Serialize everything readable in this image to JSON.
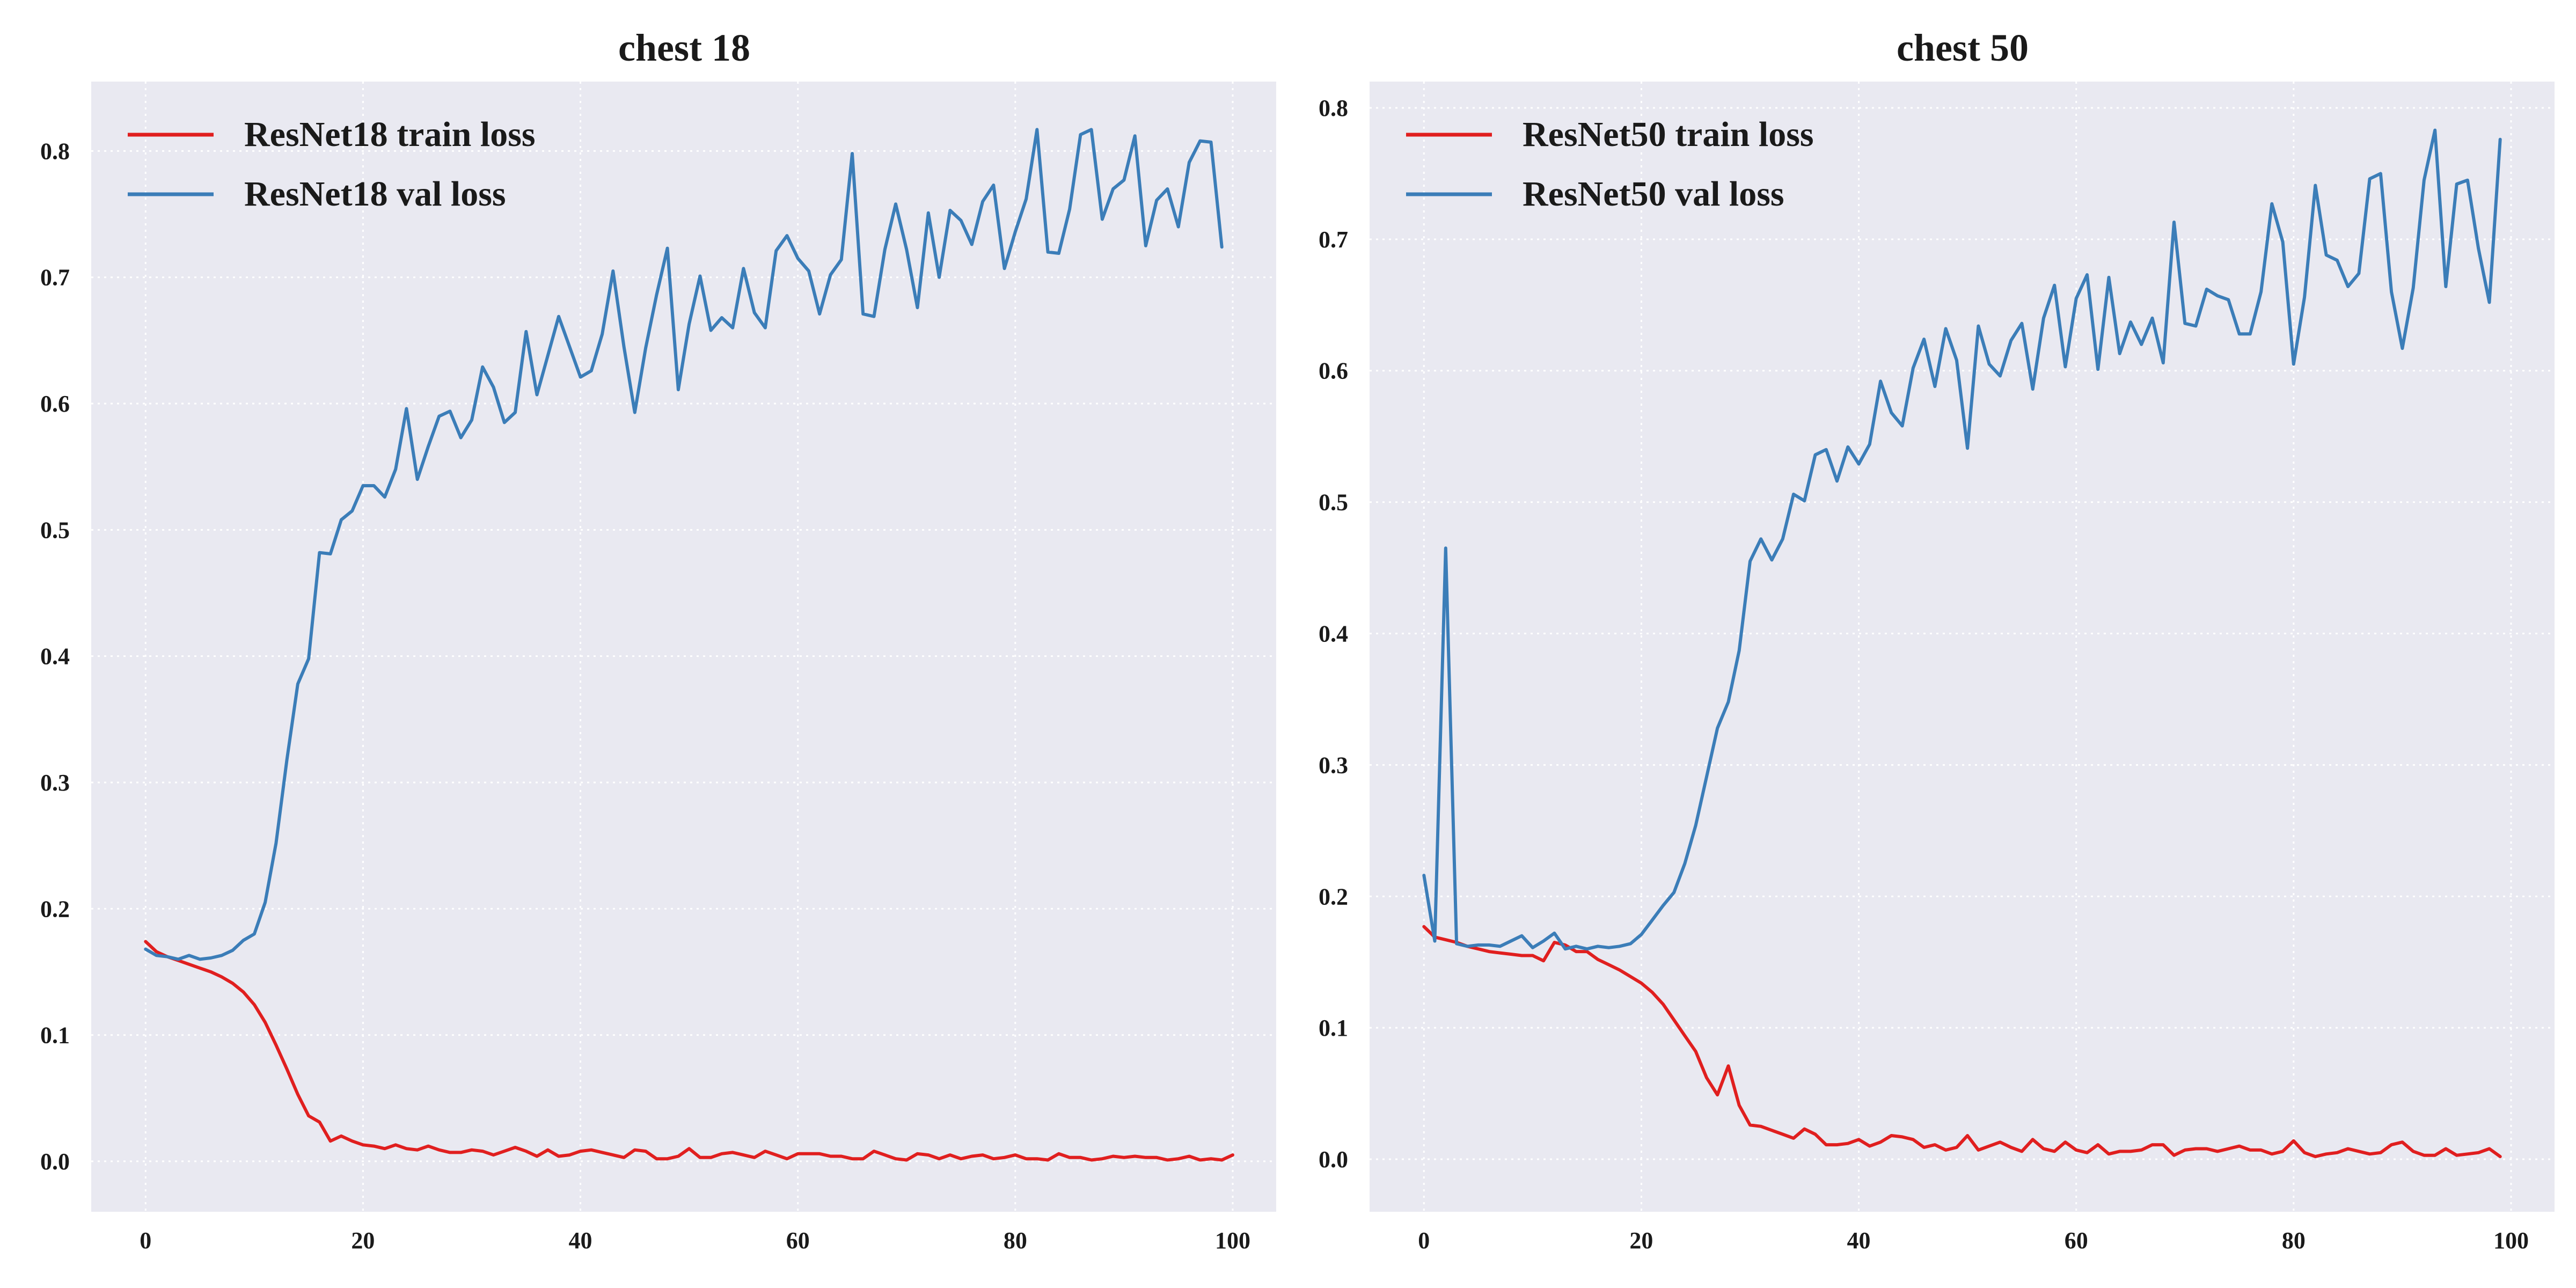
{
  "colors": {
    "panel_bg": "#e9e9f1",
    "grid": "#ffffff",
    "train": "#e01f1f",
    "val": "#3b7db8"
  },
  "chart_data": [
    {
      "type": "line",
      "title": "chest 18",
      "xlabel": "",
      "ylabel": "",
      "xlim": [
        -5,
        104
      ],
      "ylim": [
        -0.04,
        0.855
      ],
      "xticks": [
        0,
        20,
        40,
        60,
        80,
        100
      ],
      "yticks": [
        0.0,
        0.1,
        0.2,
        0.3,
        0.4,
        0.5,
        0.6,
        0.7,
        0.8
      ],
      "xtick_labels": [
        "0",
        "20",
        "40",
        "60",
        "80",
        "100"
      ],
      "ytick_labels": [
        "0.0",
        "0.1",
        "0.2",
        "0.3",
        "0.4",
        "0.5",
        "0.6",
        "0.7",
        "0.8"
      ],
      "grid": true,
      "legend": "upper-left",
      "series": [
        {
          "name": "ResNet18 train loss",
          "color": "#e01f1f",
          "values": [
            0.174,
            0.166,
            0.162,
            0.159,
            0.156,
            0.153,
            0.15,
            0.146,
            0.141,
            0.134,
            0.124,
            0.11,
            0.092,
            0.073,
            0.053,
            0.036,
            0.031,
            0.016,
            0.02,
            0.016,
            0.013,
            0.012,
            0.01,
            0.013,
            0.01,
            0.009,
            0.012,
            0.009,
            0.007,
            0.007,
            0.009,
            0.008,
            0.005,
            0.008,
            0.011,
            0.008,
            0.004,
            0.009,
            0.004,
            0.005,
            0.008,
            0.009,
            0.007,
            0.005,
            0.003,
            0.009,
            0.008,
            0.002,
            0.002,
            0.004,
            0.01,
            0.003,
            0.003,
            0.006,
            0.007,
            0.005,
            0.003,
            0.008,
            0.005,
            0.002,
            0.006,
            0.006,
            0.006,
            0.004,
            0.004,
            0.002,
            0.002,
            0.008,
            0.005,
            0.002,
            0.001,
            0.006,
            0.005,
            0.002,
            0.005,
            0.002,
            0.004,
            0.005,
            0.002,
            0.003,
            0.005,
            0.002,
            0.002,
            0.001,
            0.006,
            0.003,
            0.003,
            0.001,
            0.002,
            0.004,
            0.003,
            0.004,
            0.003,
            0.003,
            0.001,
            0.002,
            0.004,
            0.001,
            0.002,
            0.001,
            0.005
          ]
        },
        {
          "name": "ResNet18 val loss",
          "color": "#3b7db8",
          "values": [
            0.168,
            0.163,
            0.162,
            0.16,
            0.163,
            0.16,
            0.161,
            0.163,
            0.167,
            0.175,
            0.18,
            0.205,
            0.252,
            0.318,
            0.378,
            0.398,
            0.482,
            0.481,
            0.508,
            0.515,
            0.535,
            0.535,
            0.526,
            0.548,
            0.596,
            0.54,
            0.566,
            0.59,
            0.594,
            0.573,
            0.587,
            0.629,
            0.613,
            0.585,
            0.593,
            0.657,
            0.607,
            0.638,
            0.669,
            0.645,
            0.621,
            0.626,
            0.655,
            0.705,
            0.645,
            0.593,
            0.644,
            0.686,
            0.723,
            0.611,
            0.663,
            0.701,
            0.658,
            0.668,
            0.66,
            0.707,
            0.672,
            0.66,
            0.721,
            0.733,
            0.715,
            0.705,
            0.671,
            0.702,
            0.714,
            0.798,
            0.671,
            0.669,
            0.722,
            0.758,
            0.722,
            0.676,
            0.751,
            0.7,
            0.753,
            0.745,
            0.726,
            0.76,
            0.773,
            0.707,
            0.736,
            0.762,
            0.817,
            0.72,
            0.719,
            0.754,
            0.813,
            0.817,
            0.746,
            0.77,
            0.777,
            0.812,
            0.725,
            0.761,
            0.77,
            0.74,
            0.791,
            0.808,
            0.807,
            0.724
          ]
        }
      ]
    },
    {
      "type": "line",
      "title": "chest 50",
      "xlabel": "",
      "ylabel": "",
      "xlim": [
        -5,
        104
      ],
      "ylim": [
        -0.04,
        0.82
      ],
      "xticks": [
        0,
        20,
        40,
        60,
        80,
        100
      ],
      "yticks": [
        0.0,
        0.1,
        0.2,
        0.3,
        0.4,
        0.5,
        0.6,
        0.7,
        0.8
      ],
      "xtick_labels": [
        "0",
        "20",
        "40",
        "60",
        "80",
        "100"
      ],
      "ytick_labels": [
        "0.0",
        "0.1",
        "0.2",
        "0.3",
        "0.4",
        "0.5",
        "0.6",
        "0.7",
        "0.8"
      ],
      "grid": true,
      "legend": "upper-left",
      "series": [
        {
          "name": "ResNet50 train loss",
          "color": "#e01f1f",
          "values": [
            0.177,
            0.169,
            0.167,
            0.165,
            0.162,
            0.16,
            0.158,
            0.157,
            0.156,
            0.155,
            0.155,
            0.151,
            0.165,
            0.163,
            0.158,
            0.158,
            0.152,
            0.148,
            0.144,
            0.139,
            0.134,
            0.127,
            0.118,
            0.106,
            0.094,
            0.082,
            0.062,
            0.049,
            0.071,
            0.041,
            0.026,
            0.025,
            0.022,
            0.019,
            0.016,
            0.023,
            0.019,
            0.011,
            0.011,
            0.012,
            0.015,
            0.01,
            0.013,
            0.018,
            0.017,
            0.015,
            0.009,
            0.011,
            0.007,
            0.009,
            0.018,
            0.007,
            0.01,
            0.013,
            0.009,
            0.006,
            0.015,
            0.008,
            0.006,
            0.013,
            0.007,
            0.005,
            0.011,
            0.004,
            0.006,
            0.006,
            0.007,
            0.011,
            0.011,
            0.003,
            0.007,
            0.008,
            0.008,
            0.006,
            0.008,
            0.01,
            0.007,
            0.007,
            0.004,
            0.006,
            0.014,
            0.005,
            0.002,
            0.004,
            0.005,
            0.008,
            0.006,
            0.004,
            0.005,
            0.011,
            0.013,
            0.006,
            0.003,
            0.003,
            0.008,
            0.003,
            0.004,
            0.005,
            0.008,
            0.002
          ]
        },
        {
          "name": "ResNet50 val loss",
          "color": "#3b7db8",
          "values": [
            0.216,
            0.166,
            0.465,
            0.164,
            0.162,
            0.163,
            0.163,
            0.162,
            0.166,
            0.17,
            0.161,
            0.166,
            0.172,
            0.16,
            0.162,
            0.16,
            0.162,
            0.161,
            0.162,
            0.164,
            0.171,
            0.182,
            0.193,
            0.203,
            0.225,
            0.254,
            0.291,
            0.328,
            0.348,
            0.387,
            0.455,
            0.472,
            0.456,
            0.472,
            0.506,
            0.501,
            0.536,
            0.54,
            0.516,
            0.542,
            0.529,
            0.544,
            0.592,
            0.568,
            0.558,
            0.602,
            0.624,
            0.588,
            0.632,
            0.608,
            0.541,
            0.634,
            0.605,
            0.596,
            0.623,
            0.636,
            0.586,
            0.64,
            0.665,
            0.603,
            0.655,
            0.673,
            0.601,
            0.671,
            0.613,
            0.637,
            0.62,
            0.64,
            0.606,
            0.713,
            0.636,
            0.634,
            0.662,
            0.657,
            0.654,
            0.628,
            0.628,
            0.66,
            0.727,
            0.698,
            0.605,
            0.656,
            0.741,
            0.688,
            0.684,
            0.664,
            0.674,
            0.746,
            0.75,
            0.66,
            0.617,
            0.663,
            0.745,
            0.783,
            0.664,
            0.742,
            0.745,
            0.693,
            0.652,
            0.776
          ]
        }
      ]
    }
  ]
}
